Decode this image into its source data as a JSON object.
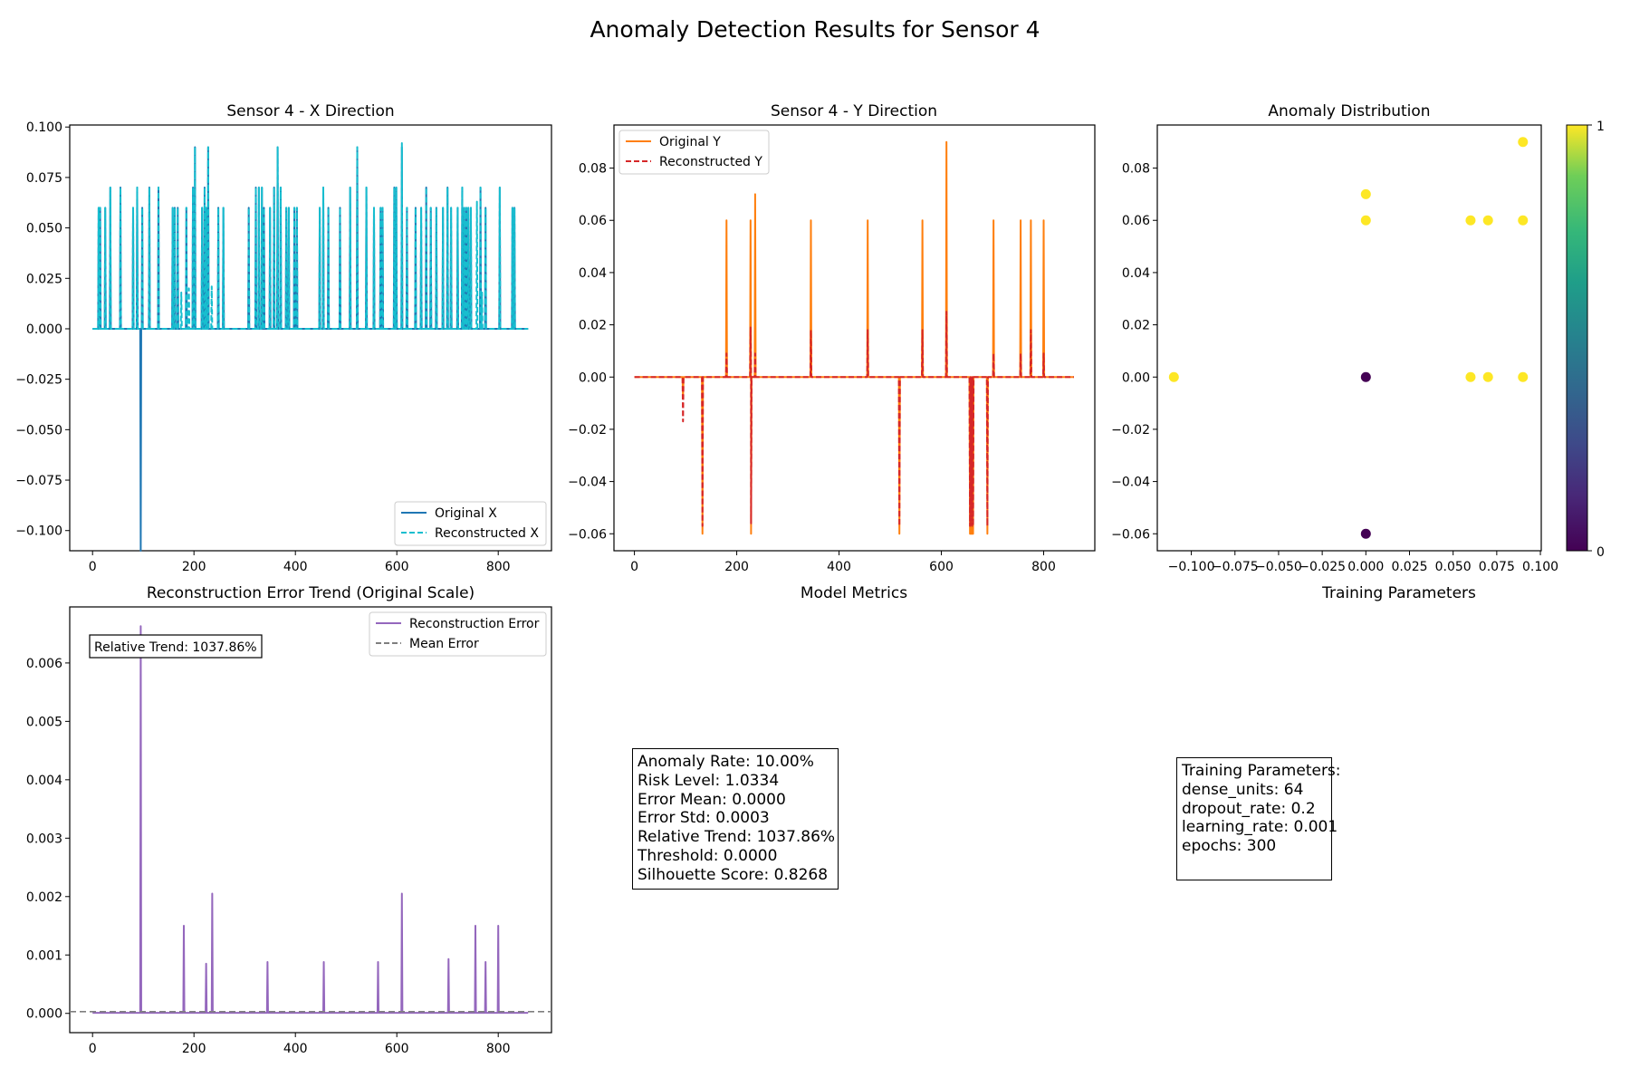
{
  "figure": {
    "title": "Anomaly Detection Results for Sensor 4"
  },
  "colors": {
    "original_x": "#1f77b4",
    "reconstructed_x": "#17becf",
    "original_y": "#ff7f0e",
    "reconstructed_y": "#d62728",
    "error": "#9467bd",
    "mean_error": "#7f7f7f",
    "normal_point": "#440154",
    "anomaly_point": "#fde725"
  },
  "chart_data": [
    {
      "id": "x_direction",
      "type": "line",
      "title": "Sensor 4 - X Direction",
      "xlabel": "",
      "ylabel": "",
      "xlim": [
        -45,
        905
      ],
      "ylim": [
        -0.11,
        0.101
      ],
      "xticks": [
        0,
        200,
        400,
        600,
        800
      ],
      "yticks": [
        -0.1,
        -0.075,
        -0.05,
        -0.025,
        0.0,
        0.025,
        0.05,
        0.075,
        0.1
      ],
      "ytick_labels": [
        "−0.100",
        "−0.075",
        "−0.050",
        "−0.025",
        "0.000",
        "0.025",
        "0.050",
        "0.075",
        "0.100"
      ],
      "legend_loc": "lower right",
      "n_points": 860,
      "series": [
        {
          "name": "Original X",
          "style": "solid",
          "spikes": [
            [
              12,
              0.06
            ],
            [
              15,
              0.06
            ],
            [
              25,
              0.06
            ],
            [
              35,
              0.07
            ],
            [
              55,
              0.07
            ],
            [
              80,
              0.06
            ],
            [
              88,
              0.07
            ],
            [
              95,
              -0.11
            ],
            [
              98,
              0.06
            ],
            [
              112,
              0.07
            ],
            [
              130,
              0.07
            ],
            [
              158,
              0.06
            ],
            [
              162,
              0.06
            ],
            [
              168,
              0.06
            ],
            [
              185,
              0.06
            ],
            [
              198,
              0.07
            ],
            [
              202,
              0.09
            ],
            [
              216,
              0.06
            ],
            [
              221,
              0.07
            ],
            [
              224,
              0.06
            ],
            [
              228,
              0.09
            ],
            [
              248,
              0.06
            ],
            [
              258,
              0.06
            ],
            [
              308,
              0.06
            ],
            [
              322,
              0.07
            ],
            [
              328,
              0.07
            ],
            [
              334,
              0.07
            ],
            [
              338,
              0.06
            ],
            [
              350,
              0.06
            ],
            [
              358,
              0.07
            ],
            [
              365,
              0.09
            ],
            [
              371,
              0.07
            ],
            [
              382,
              0.06
            ],
            [
              387,
              0.06
            ],
            [
              398,
              0.06
            ],
            [
              403,
              0.06
            ],
            [
              448,
              0.06
            ],
            [
              455,
              0.07
            ],
            [
              465,
              0.06
            ],
            [
              488,
              0.06
            ],
            [
              508,
              0.07
            ],
            [
              522,
              0.09
            ],
            [
              540,
              0.07
            ],
            [
              555,
              0.06
            ],
            [
              568,
              0.06
            ],
            [
              572,
              0.06
            ],
            [
              595,
              0.07
            ],
            [
              599,
              0.07
            ],
            [
              610,
              0.09
            ],
            [
              620,
              0.06
            ],
            [
              637,
              0.06
            ],
            [
              648,
              0.06
            ],
            [
              658,
              0.07
            ],
            [
              667,
              0.06
            ],
            [
              678,
              0.06
            ],
            [
              691,
              0.06
            ],
            [
              700,
              0.07
            ],
            [
              707,
              0.06
            ],
            [
              720,
              0.06
            ],
            [
              729,
              0.07
            ],
            [
              733,
              0.06
            ],
            [
              737,
              0.06
            ],
            [
              741,
              0.06
            ],
            [
              746,
              0.06
            ],
            [
              765,
              0.07
            ],
            [
              775,
              0.06
            ],
            [
              803,
              0.07
            ],
            [
              828,
              0.06
            ],
            [
              832,
              0.06
            ]
          ]
        },
        {
          "name": "Reconstructed X",
          "style": "dashed",
          "spikes": [
            [
              12,
              0.06
            ],
            [
              15,
              0.06
            ],
            [
              25,
              0.06
            ],
            [
              35,
              0.07
            ],
            [
              55,
              0.07
            ],
            [
              80,
              0.06
            ],
            [
              88,
              0.07
            ],
            [
              98,
              0.06
            ],
            [
              112,
              0.07
            ],
            [
              130,
              0.07
            ],
            [
              158,
              0.06
            ],
            [
              162,
              0.06
            ],
            [
              168,
              0.06
            ],
            [
              175,
              0.018
            ],
            [
              185,
              0.06
            ],
            [
              190,
              0.02
            ],
            [
              198,
              0.07
            ],
            [
              202,
              0.09
            ],
            [
              216,
              0.06
            ],
            [
              221,
              0.07
            ],
            [
              224,
              0.06
            ],
            [
              228,
              0.09
            ],
            [
              235,
              0.021
            ],
            [
              248,
              0.06
            ],
            [
              258,
              0.06
            ],
            [
              308,
              0.06
            ],
            [
              322,
              0.07
            ],
            [
              328,
              0.07
            ],
            [
              334,
              0.07
            ],
            [
              338,
              0.06
            ],
            [
              350,
              0.06
            ],
            [
              358,
              0.07
            ],
            [
              365,
              0.09
            ],
            [
              371,
              0.07
            ],
            [
              382,
              0.06
            ],
            [
              387,
              0.06
            ],
            [
              398,
              0.06
            ],
            [
              403,
              0.06
            ],
            [
              448,
              0.06
            ],
            [
              455,
              0.07
            ],
            [
              465,
              0.06
            ],
            [
              488,
              0.06
            ],
            [
              508,
              0.07
            ],
            [
              522,
              0.09
            ],
            [
              540,
              0.07
            ],
            [
              555,
              0.06
            ],
            [
              568,
              0.06
            ],
            [
              572,
              0.06
            ],
            [
              595,
              0.07
            ],
            [
              599,
              0.07
            ],
            [
              610,
              0.092
            ],
            [
              620,
              0.06
            ],
            [
              637,
              0.06
            ],
            [
              648,
              0.06
            ],
            [
              658,
              0.07
            ],
            [
              667,
              0.06
            ],
            [
              678,
              0.06
            ],
            [
              691,
              0.06
            ],
            [
              700,
              0.07
            ],
            [
              707,
              0.06
            ],
            [
              720,
              0.06
            ],
            [
              729,
              0.07
            ],
            [
              733,
              0.06
            ],
            [
              737,
              0.06
            ],
            [
              741,
              0.06
            ],
            [
              746,
              0.06
            ],
            [
              758,
              0.063
            ],
            [
              765,
              0.07
            ],
            [
              768,
              0.018
            ],
            [
              775,
              0.06
            ],
            [
              803,
              0.07
            ],
            [
              828,
              0.06
            ],
            [
              832,
              0.06
            ]
          ]
        }
      ]
    },
    {
      "id": "y_direction",
      "type": "line",
      "title": "Sensor 4 - Y Direction",
      "xlabel": "",
      "ylabel": "",
      "xlim": [
        -40,
        900
      ],
      "ylim": [
        -0.0665,
        0.0965
      ],
      "xticks": [
        0,
        200,
        400,
        600,
        800
      ],
      "yticks": [
        -0.06,
        -0.04,
        -0.02,
        0.0,
        0.02,
        0.04,
        0.06,
        0.08
      ],
      "ytick_labels": [
        "−0.06",
        "−0.04",
        "−0.02",
        "0.00",
        "0.02",
        "0.04",
        "0.06",
        "0.08"
      ],
      "legend_loc": "upper left",
      "n_points": 860,
      "series": [
        {
          "name": "Original Y",
          "style": "solid",
          "spikes": [
            [
              95,
              -0.008
            ],
            [
              133,
              -0.06
            ],
            [
              180,
              0.06
            ],
            [
              227,
              0.06
            ],
            [
              228,
              -0.06
            ],
            [
              236,
              0.07
            ],
            [
              345,
              0.06
            ],
            [
              456,
              0.06
            ],
            [
              518,
              -0.06
            ],
            [
              563,
              0.06
            ],
            [
              610,
              0.09
            ],
            [
              656,
              -0.06
            ],
            [
              658,
              -0.06
            ],
            [
              660,
              -0.06
            ],
            [
              662,
              -0.06
            ],
            [
              690,
              -0.06
            ],
            [
              702,
              0.06
            ],
            [
              755,
              0.06
            ],
            [
              775,
              0.06
            ],
            [
              800,
              0.06
            ]
          ]
        },
        {
          "name": "Reconstructed Y",
          "style": "dashed",
          "spikes": [
            [
              95,
              -0.017
            ],
            [
              133,
              -0.057
            ],
            [
              180,
              0.009
            ],
            [
              227,
              0.019
            ],
            [
              228,
              -0.056
            ],
            [
              236,
              0.009
            ],
            [
              345,
              0.018
            ],
            [
              456,
              0.018
            ],
            [
              518,
              -0.057
            ],
            [
              563,
              0.018
            ],
            [
              610,
              0.025
            ],
            [
              656,
              -0.057
            ],
            [
              658,
              -0.057
            ],
            [
              660,
              -0.057
            ],
            [
              662,
              -0.057
            ],
            [
              690,
              -0.057
            ],
            [
              702,
              0.009
            ],
            [
              755,
              0.009
            ],
            [
              775,
              0.018
            ],
            [
              800,
              0.009
            ]
          ]
        }
      ]
    },
    {
      "id": "anomaly_distribution",
      "type": "scatter",
      "title": "Anomaly Distribution",
      "xlabel": "",
      "ylabel": "",
      "xlim": [
        -0.1195,
        0.1005
      ],
      "ylim": [
        -0.0665,
        0.0965
      ],
      "xticks": [
        -0.1,
        -0.075,
        -0.05,
        -0.025,
        0.0,
        0.025,
        0.05,
        0.075,
        0.1
      ],
      "xtick_labels": [
        "−0.100",
        "−0.075",
        "−0.050",
        "−0.025",
        "0.000",
        "0.025",
        "0.050",
        "0.075",
        "0.100"
      ],
      "yticks": [
        -0.06,
        -0.04,
        -0.02,
        0.0,
        0.02,
        0.04,
        0.06,
        0.08
      ],
      "ytick_labels": [
        "−0.06",
        "−0.04",
        "−0.02",
        "0.00",
        "0.02",
        "0.04",
        "0.06",
        "0.08"
      ],
      "colorbar": {
        "min": 0,
        "max": 1,
        "tick_labels": [
          "0",
          "1"
        ],
        "colormap": "viridis"
      },
      "points": [
        {
          "x": -0.11,
          "y": 0.0,
          "label": 1
        },
        {
          "x": 0.0,
          "y": 0.07,
          "label": 1
        },
        {
          "x": 0.0,
          "y": 0.06,
          "label": 1
        },
        {
          "x": 0.0,
          "y": 0.0,
          "label": 0
        },
        {
          "x": 0.0,
          "y": -0.06,
          "label": 0
        },
        {
          "x": 0.06,
          "y": 0.06,
          "label": 1
        },
        {
          "x": 0.07,
          "y": 0.06,
          "label": 1
        },
        {
          "x": 0.09,
          "y": 0.09,
          "label": 1
        },
        {
          "x": 0.09,
          "y": 0.06,
          "label": 1
        },
        {
          "x": 0.06,
          "y": 0.0,
          "label": 1
        },
        {
          "x": 0.07,
          "y": 0.0,
          "label": 1
        },
        {
          "x": 0.09,
          "y": 0.0,
          "label": 1
        }
      ]
    },
    {
      "id": "reconstruction_error",
      "type": "line",
      "title": "Reconstruction Error Trend (Original Scale)",
      "xlabel": "",
      "ylabel": "",
      "xlim": [
        -45,
        905
      ],
      "ylim": [
        -0.00033,
        0.00696
      ],
      "xticks": [
        0,
        200,
        400,
        600,
        800
      ],
      "yticks": [
        0.0,
        0.001,
        0.002,
        0.003,
        0.004,
        0.005,
        0.006
      ],
      "ytick_labels": [
        "0.000",
        "0.001",
        "0.002",
        "0.003",
        "0.004",
        "0.005",
        "0.006"
      ],
      "legend_loc": "upper right",
      "annotation": "Relative Trend: 1037.86%",
      "mean_error": 3e-05,
      "n_points": 860,
      "series": [
        {
          "name": "Reconstruction Error",
          "style": "solid",
          "spikes": [
            [
              95,
              0.00663
            ],
            [
              180,
              0.0015
            ],
            [
              224,
              0.00085
            ],
            [
              236,
              0.00205
            ],
            [
              345,
              0.00088
            ],
            [
              456,
              0.00088
            ],
            [
              563,
              0.00088
            ],
            [
              610,
              0.00205
            ],
            [
              702,
              0.00093
            ],
            [
              755,
              0.0015
            ],
            [
              775,
              0.00088
            ],
            [
              800,
              0.0015
            ]
          ]
        },
        {
          "name": "Mean Error",
          "style": "dashed"
        }
      ]
    }
  ],
  "metrics_panel": {
    "title": "Model Metrics",
    "lines": [
      "Anomaly Rate: 10.00%",
      "Risk Level: 1.0334",
      "Error Mean: 0.0000",
      "Error Std: 0.0003",
      "Relative Trend: 1037.86%",
      "Threshold: 0.0000",
      "Silhouette Score: 0.8268"
    ]
  },
  "params_panel": {
    "title": "Training Parameters",
    "lines": [
      "Training Parameters:",
      "dense_units: 64",
      "dropout_rate: 0.2",
      "learning_rate: 0.001",
      "epochs: 300"
    ]
  }
}
